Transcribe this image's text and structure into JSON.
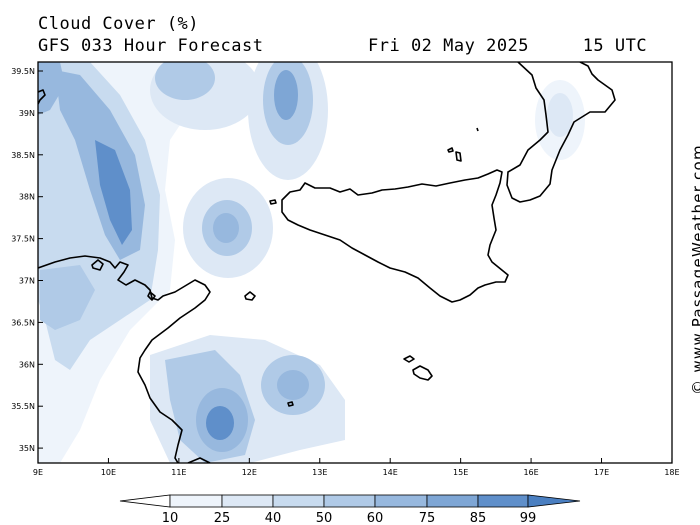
{
  "header": {
    "title": "Cloud Cover (%)",
    "subtitle": "GFS 033 Hour Forecast",
    "datetime": "Fri 02 May 2025     15 UTC"
  },
  "watermark": "© www.PassageWeather.com",
  "map": {
    "lat_ticks": [
      "39.5N",
      "39N",
      "38.5N",
      "38N",
      "37.5N",
      "37N",
      "36.5N",
      "36N",
      "35.5N",
      "35N"
    ],
    "lon_ticks": [
      "9E",
      "10E",
      "11E",
      "12E",
      "13E",
      "14E",
      "15E",
      "16E",
      "17E",
      "18E"
    ],
    "lon_range": [
      9,
      18
    ],
    "lat_range": [
      34.8,
      39.6
    ]
  },
  "legend": {
    "labels": [
      "10",
      "25",
      "40",
      "50",
      "60",
      "75",
      "85",
      "99"
    ],
    "colors": [
      "#ffffff",
      "#eef4fb",
      "#dde8f5",
      "#c8dbef",
      "#b0cae7",
      "#97b8de",
      "#7ea6d5",
      "#5f8fca",
      "#4a7fc1"
    ]
  },
  "colors": {
    "coast": "#000000",
    "sea": "#ffffff",
    "cloud_low": "#eef4fb",
    "cloud_high": "#4a7fc1"
  }
}
